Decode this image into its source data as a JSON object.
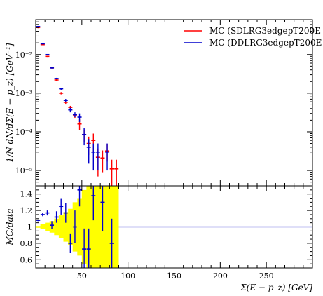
{
  "chart_data": [
    {
      "panel": "main",
      "type": "scatter",
      "title": "",
      "ylabel": "1/N dN/dΣ(E − p_z) [GeV⁻¹]",
      "xlim": [
        0,
        300
      ],
      "ylim": [
        4e-06,
        0.08
      ],
      "yscale": "log",
      "y_tick_labels": [
        "10⁻⁵",
        "10⁻⁴",
        "10⁻³",
        "10⁻²"
      ],
      "legend_position": "top-right",
      "series": [
        {
          "name": "MC (SDLRG3edgepT200E",
          "color": "#ff0000",
          "x": [
            2.5,
            7.5,
            12.5,
            17.5,
            22.5,
            27.5,
            32.5,
            37.5,
            42.5,
            47.5,
            52.5,
            57.5,
            62.5,
            67.5,
            72.5,
            77.5,
            82.5,
            87.5
          ],
          "y": [
            0.05,
            0.018,
            0.009,
            0.0045,
            0.0022,
            0.001,
            0.00058,
            0.00043,
            0.00026,
            0.00016,
            8.5e-05,
            5e-05,
            6e-05,
            2.2e-05,
            2.1e-05,
            3.2e-05,
            1.1e-05,
            1.1e-05
          ],
          "yerr": [
            0.002,
            0.0005,
            0.0003,
            0.00015,
            0.0001,
            7e-05,
            5e-05,
            4e-05,
            3e-05,
            5e-05,
            3e-05,
            2.5e-05,
            3e-05,
            1.5e-05,
            1.2e-05,
            1.5e-05,
            8e-06,
            8e-06
          ]
        },
        {
          "name": "MC (DDLRG3edgepT200E",
          "color": "#0000cc",
          "x": [
            2.5,
            7.5,
            12.5,
            17.5,
            22.5,
            27.5,
            32.5,
            37.5,
            42.5,
            47.5,
            52.5,
            57.5,
            62.5,
            67.5,
            77.5
          ],
          "y": [
            0.053,
            0.019,
            0.01,
            0.0045,
            0.0024,
            0.0013,
            0.00065,
            0.00037,
            0.00028,
            0.00024,
            8.5e-05,
            4e-05,
            3e-05,
            3e-05,
            3e-05
          ],
          "yerr": [
            0.002,
            0.0006,
            0.0003,
            0.00015,
            0.0001,
            8e-05,
            6e-05,
            5e-05,
            4e-05,
            6e-05,
            4e-05,
            2.5e-05,
            2e-05,
            2e-05,
            2e-05
          ]
        }
      ]
    },
    {
      "panel": "ratio",
      "type": "scatter",
      "ylabel": "MC/data",
      "xlabel": "Σ(E − p_z) [GeV]",
      "xlim": [
        0,
        300
      ],
      "ylim": [
        0.5,
        1.5
      ],
      "x_ticks": [
        50,
        100,
        150,
        200,
        250
      ],
      "y_ticks": [
        0.6,
        0.8,
        1,
        1.2,
        1.4
      ],
      "reference_line": 1,
      "band": {
        "color": "#ffff00",
        "x": [
          0,
          5,
          10,
          15,
          20,
          25,
          30,
          35,
          40,
          45,
          50,
          55,
          60,
          65,
          70,
          75,
          80,
          85,
          90
        ],
        "hi": [
          1.01,
          1.03,
          1.05,
          1.07,
          1.1,
          1.14,
          1.18,
          1.22,
          1.3,
          1.35,
          1.45,
          1.5,
          1.5,
          1.5,
          1.5,
          1.5,
          1.5,
          1.5,
          1.0
        ],
        "lo": [
          0.99,
          0.97,
          0.95,
          0.93,
          0.9,
          0.86,
          0.82,
          0.78,
          0.7,
          0.65,
          0.55,
          0.5,
          0.5,
          0.5,
          0.5,
          0.5,
          0.5,
          0.5,
          1.0
        ]
      },
      "series": [
        {
          "name": "MC (DDLRG3edgepT200E",
          "color": "#0000cc",
          "x": [
            2.5,
            7.5,
            12.5,
            17.5,
            22.5,
            27.5,
            32.5,
            37.5,
            42.5,
            47.5,
            52.5,
            57.5,
            62.5,
            72.5,
            82.5
          ],
          "y": [
            1.08,
            1.15,
            1.17,
            1.02,
            1.12,
            1.25,
            1.17,
            0.8,
            1.0,
            1.45,
            0.73,
            0.73,
            1.38,
            1.3,
            0.8
          ],
          "yerr": [
            0.01,
            0.02,
            0.03,
            0.05,
            0.07,
            0.1,
            0.12,
            0.12,
            0.2,
            0.2,
            0.25,
            0.25,
            0.3,
            0.35,
            0.3
          ]
        }
      ]
    }
  ]
}
